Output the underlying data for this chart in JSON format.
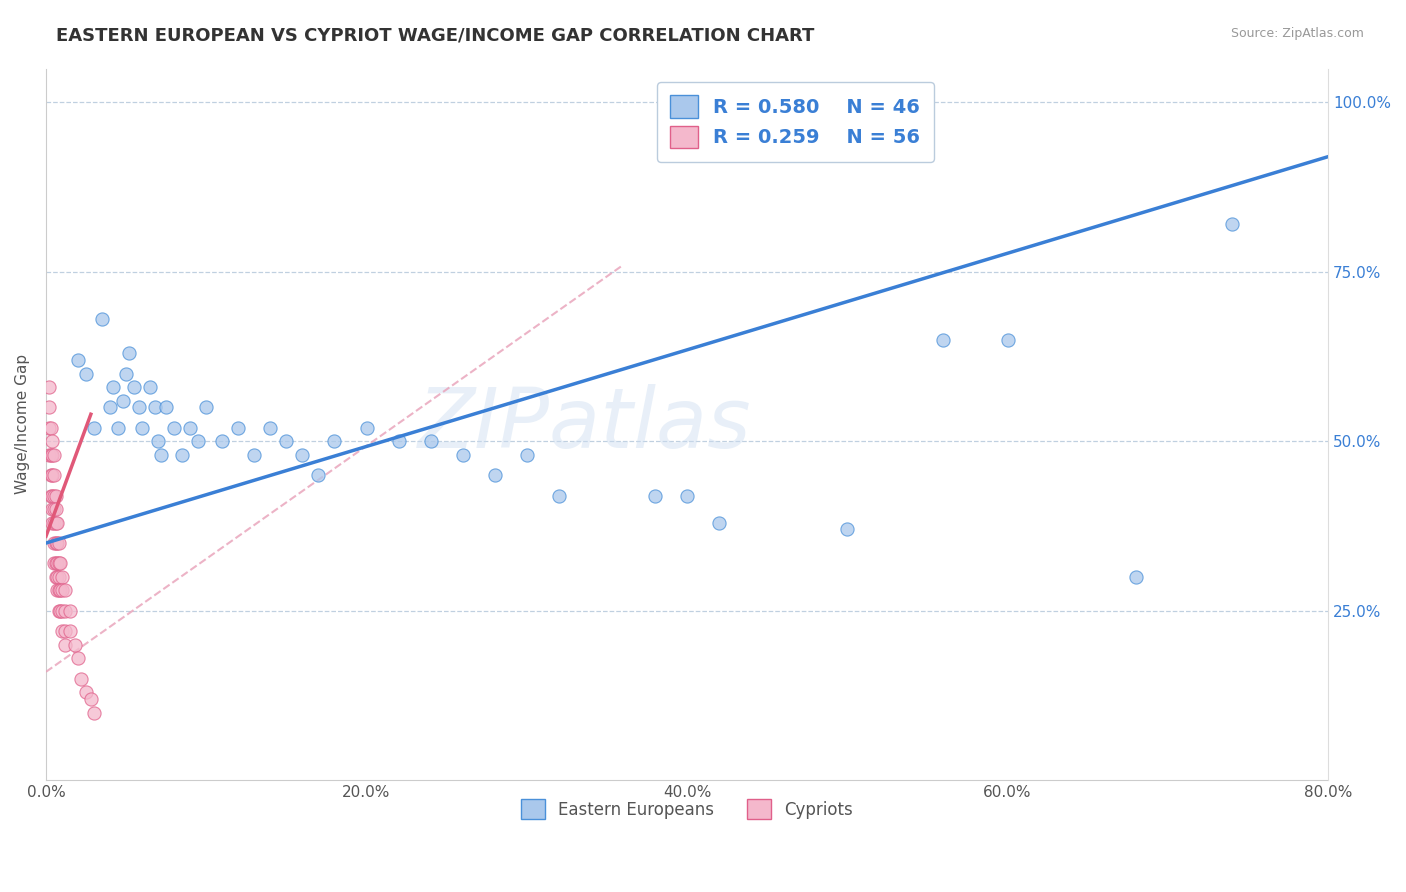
{
  "title": "EASTERN EUROPEAN VS CYPRIOT WAGE/INCOME GAP CORRELATION CHART",
  "source": "Source: ZipAtlas.com",
  "ylabel": "Wage/Income Gap",
  "xlim": [
    0.0,
    0.8
  ],
  "ylim": [
    0.0,
    1.05
  ],
  "yticks": [
    0.25,
    0.5,
    0.75,
    1.0
  ],
  "ytick_labels": [
    "25.0%",
    "50.0%",
    "75.0%",
    "100.0%"
  ],
  "xticks": [
    0.0,
    0.2,
    0.4,
    0.6,
    0.8
  ],
  "xtick_labels": [
    "0.0%",
    "20.0%",
    "40.0%",
    "60.0%",
    "80.0%"
  ],
  "blue_R": 0.58,
  "blue_N": 46,
  "pink_R": 0.259,
  "pink_N": 56,
  "blue_fill": "#aac8ec",
  "blue_edge": "#4a90d9",
  "pink_fill": "#f4b8cc",
  "pink_edge": "#e0608a",
  "blue_line": "#3a7fd5",
  "pink_line": "#e05878",
  "pink_dash": "#e8a0b8",
  "grid_color": "#c0d0e0",
  "bg_color": "#ffffff",
  "scatter_size": 90,
  "scatter_alpha": 0.75,
  "watermark": "ZIPatlas",
  "blue_scatter": [
    [
      0.02,
      0.62
    ],
    [
      0.025,
      0.6
    ],
    [
      0.03,
      0.52
    ],
    [
      0.035,
      0.68
    ],
    [
      0.04,
      0.55
    ],
    [
      0.042,
      0.58
    ],
    [
      0.045,
      0.52
    ],
    [
      0.048,
      0.56
    ],
    [
      0.05,
      0.6
    ],
    [
      0.052,
      0.63
    ],
    [
      0.055,
      0.58
    ],
    [
      0.058,
      0.55
    ],
    [
      0.06,
      0.52
    ],
    [
      0.065,
      0.58
    ],
    [
      0.068,
      0.55
    ],
    [
      0.07,
      0.5
    ],
    [
      0.072,
      0.48
    ],
    [
      0.075,
      0.55
    ],
    [
      0.08,
      0.52
    ],
    [
      0.085,
      0.48
    ],
    [
      0.09,
      0.52
    ],
    [
      0.095,
      0.5
    ],
    [
      0.1,
      0.55
    ],
    [
      0.11,
      0.5
    ],
    [
      0.12,
      0.52
    ],
    [
      0.13,
      0.48
    ],
    [
      0.14,
      0.52
    ],
    [
      0.15,
      0.5
    ],
    [
      0.16,
      0.48
    ],
    [
      0.17,
      0.45
    ],
    [
      0.18,
      0.5
    ],
    [
      0.2,
      0.52
    ],
    [
      0.22,
      0.5
    ],
    [
      0.24,
      0.5
    ],
    [
      0.26,
      0.48
    ],
    [
      0.28,
      0.45
    ],
    [
      0.3,
      0.48
    ],
    [
      0.32,
      0.42
    ],
    [
      0.38,
      0.42
    ],
    [
      0.4,
      0.42
    ],
    [
      0.42,
      0.38
    ],
    [
      0.5,
      0.37
    ],
    [
      0.56,
      0.65
    ],
    [
      0.6,
      0.65
    ],
    [
      0.68,
      0.3
    ],
    [
      0.74,
      0.82
    ]
  ],
  "pink_scatter": [
    [
      0.002,
      0.58
    ],
    [
      0.002,
      0.55
    ],
    [
      0.002,
      0.52
    ],
    [
      0.002,
      0.48
    ],
    [
      0.003,
      0.52
    ],
    [
      0.003,
      0.48
    ],
    [
      0.003,
      0.45
    ],
    [
      0.003,
      0.42
    ],
    [
      0.004,
      0.5
    ],
    [
      0.004,
      0.48
    ],
    [
      0.004,
      0.45
    ],
    [
      0.004,
      0.42
    ],
    [
      0.004,
      0.4
    ],
    [
      0.004,
      0.38
    ],
    [
      0.005,
      0.48
    ],
    [
      0.005,
      0.45
    ],
    [
      0.005,
      0.42
    ],
    [
      0.005,
      0.4
    ],
    [
      0.005,
      0.38
    ],
    [
      0.005,
      0.35
    ],
    [
      0.005,
      0.32
    ],
    [
      0.006,
      0.42
    ],
    [
      0.006,
      0.4
    ],
    [
      0.006,
      0.38
    ],
    [
      0.006,
      0.35
    ],
    [
      0.006,
      0.32
    ],
    [
      0.006,
      0.3
    ],
    [
      0.007,
      0.38
    ],
    [
      0.007,
      0.35
    ],
    [
      0.007,
      0.32
    ],
    [
      0.007,
      0.3
    ],
    [
      0.007,
      0.28
    ],
    [
      0.008,
      0.35
    ],
    [
      0.008,
      0.32
    ],
    [
      0.008,
      0.3
    ],
    [
      0.008,
      0.28
    ],
    [
      0.008,
      0.25
    ],
    [
      0.009,
      0.32
    ],
    [
      0.009,
      0.28
    ],
    [
      0.009,
      0.25
    ],
    [
      0.01,
      0.3
    ],
    [
      0.01,
      0.28
    ],
    [
      0.01,
      0.25
    ],
    [
      0.01,
      0.22
    ],
    [
      0.012,
      0.28
    ],
    [
      0.012,
      0.25
    ],
    [
      0.012,
      0.22
    ],
    [
      0.012,
      0.2
    ],
    [
      0.015,
      0.25
    ],
    [
      0.015,
      0.22
    ],
    [
      0.018,
      0.2
    ],
    [
      0.02,
      0.18
    ],
    [
      0.022,
      0.15
    ],
    [
      0.025,
      0.13
    ],
    [
      0.028,
      0.12
    ],
    [
      0.03,
      0.1
    ]
  ],
  "blue_trend": [
    0.0,
    0.8,
    0.35,
    0.92
  ],
  "pink_trend_solid": [
    0.0,
    0.028,
    0.36,
    0.54
  ],
  "pink_trend_dash": [
    0.0,
    0.16,
    0.36,
    0.76
  ]
}
